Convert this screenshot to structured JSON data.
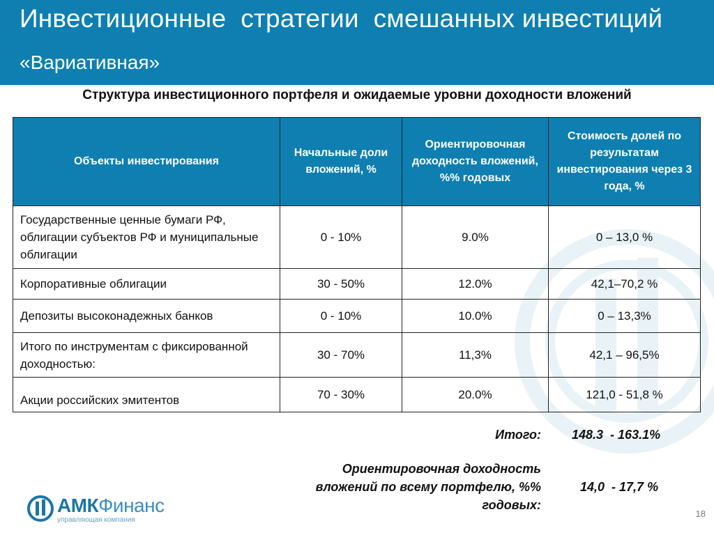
{
  "header": {
    "title": "Инвестиционные  стратегии  смешанных инвестиций",
    "subtitle": "«Вариативная»"
  },
  "table_title": "Структура инвестиционного портфеля и ожидаемые уровни доходности вложений",
  "table": {
    "headers": [
      "Объекты инвестирования",
      "Начальные доли вложений, %",
      "Ориентировочная доходность вложений, %% годовых",
      "Стоимость долей по результатам инвестирования через 3 года, %"
    ],
    "rows": [
      {
        "name": "Государственные ценные бумаги РФ, облигации субъектов РФ и муниципальные облигации",
        "share": "0 - 10%",
        "yield": "9.0%",
        "value": "0 – 13,0 %"
      },
      {
        "name": "Корпоративные облигации",
        "share": "30 - 50%",
        "yield": "12.0%",
        "value": "42,1–70,2 %"
      },
      {
        "name": "Депозиты высоконадежных банков",
        "share": "0 - 10%",
        "yield": "10.0%",
        "value": "0 – 13,3%"
      },
      {
        "name": "Итого по инструментам с фиксированной доходностью:",
        "share": "30 - 70%",
        "yield": "11,3%",
        "value": "42,1 – 96,5%"
      },
      {
        "name": "Акции российских эмитентов",
        "share": "70 - 30%",
        "yield": "20.0%",
        "value": "121,0 - 51,8 %"
      }
    ]
  },
  "summary": {
    "total_label": "Итого:",
    "total_value": "148.3  - 163.1%",
    "yield_label_line1": "Ориентировочная доходность",
    "yield_label_line2": "вложений по всему портфелю, %%",
    "yield_label_line3": "годовых:",
    "yield_value": "14,0  - 17,7 %"
  },
  "logo": {
    "name_bold": "АМК",
    "name_regular": "Финанс",
    "tagline": "управляющая компания",
    "icon": "amk-logo-icon"
  },
  "page_number": "18",
  "colors": {
    "header_blue": "#0e7fb0",
    "logo_blue": "#1a76a6"
  }
}
